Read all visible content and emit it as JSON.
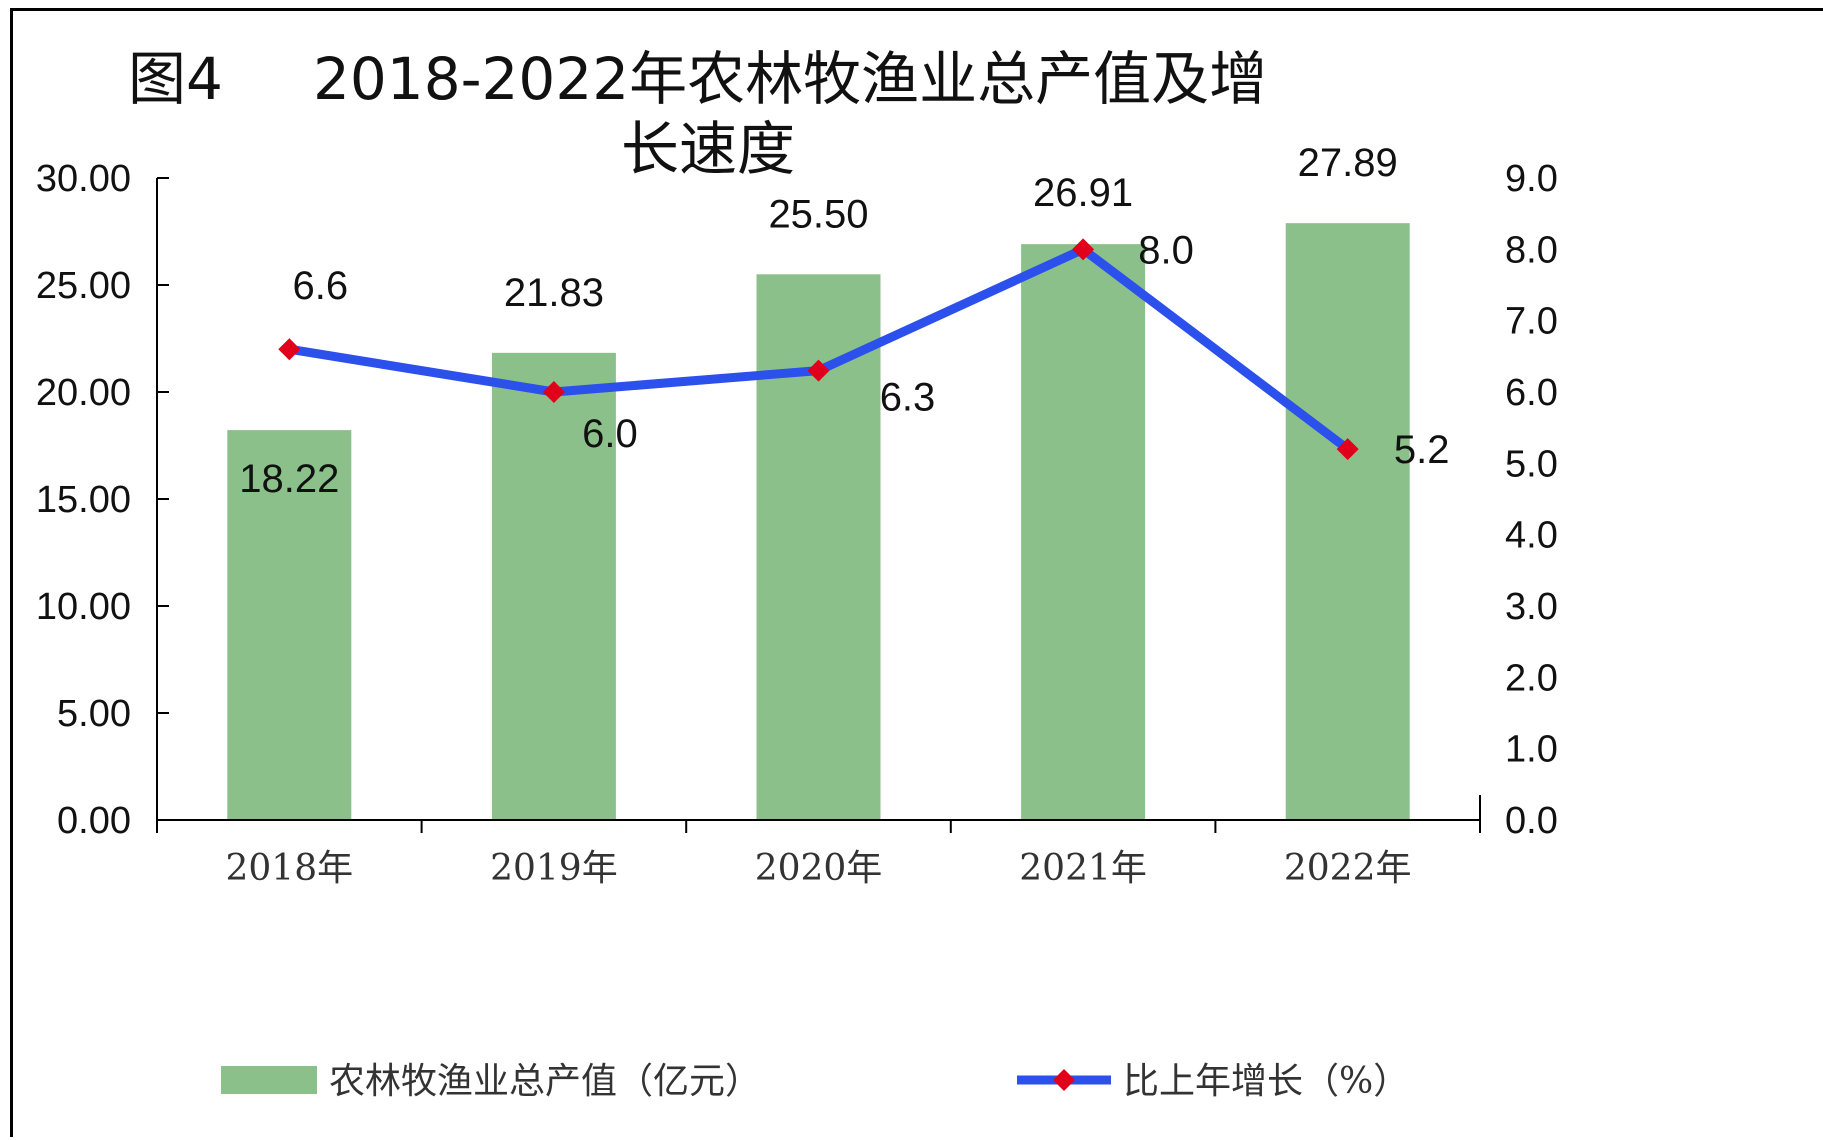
{
  "chart_data": {
    "type": "bar",
    "title_line1_prefix": "图4",
    "title_line1": "2018-2022年农林牧渔业总产值及增",
    "title_line2": "长速度",
    "categories": [
      "2018年",
      "2019年",
      "2020年",
      "2021年",
      "2022年"
    ],
    "y_left": {
      "ticks": [
        "0.00",
        "5.00",
        "10.00",
        "15.00",
        "20.00",
        "25.00",
        "30.00"
      ],
      "ylim": [
        0,
        30
      ]
    },
    "y_right": {
      "ticks": [
        "0.0",
        "1.0",
        "2.0",
        "3.0",
        "4.0",
        "5.0",
        "6.0",
        "7.0",
        "8.0",
        "9.0"
      ],
      "ylim": [
        0,
        9
      ]
    },
    "series": [
      {
        "name": "农林牧渔业总产值（亿元）",
        "kind": "bar",
        "axis": "left",
        "color": "#8cc08a",
        "values": [
          18.22,
          21.83,
          25.5,
          26.91,
          27.89
        ],
        "labels": [
          "18.22",
          "21.83",
          "25.50",
          "26.91",
          "27.89"
        ]
      },
      {
        "name": "比上年增长（%）",
        "kind": "line",
        "axis": "right",
        "color": "#2b50ec",
        "marker_color": "#e0001b",
        "values": [
          6.6,
          6.0,
          6.3,
          8.0,
          5.2
        ],
        "labels": [
          "6.6",
          "6.0",
          "6.3",
          "8.0",
          "5.2"
        ]
      }
    ],
    "grid": false,
    "legend_position": "bottom"
  }
}
